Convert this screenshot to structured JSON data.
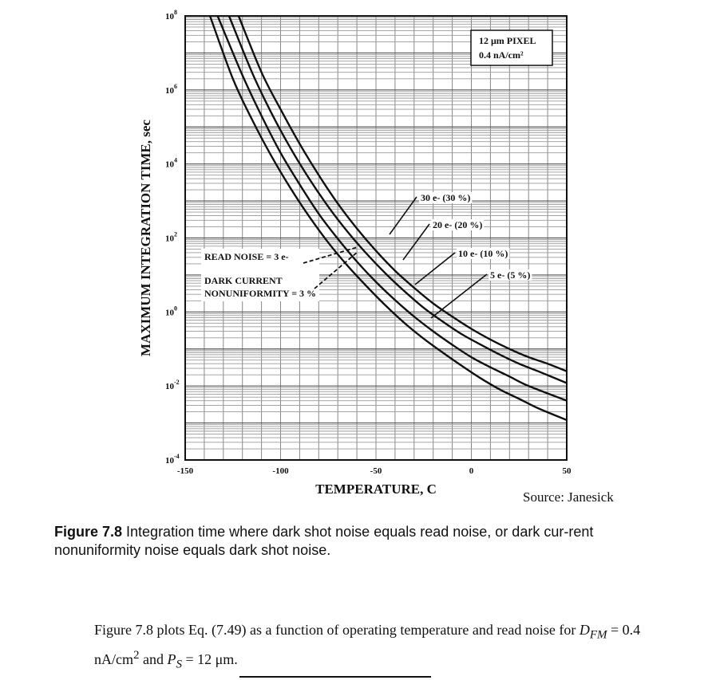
{
  "figure": {
    "label": "Figure 7.8",
    "caption": " Integration time where dark shot noise equals read noise, or dark cur-rent nonuniformity noise equals dark shot noise.",
    "source": "Source: Janesick"
  },
  "body_text": {
    "before": "Figure 7.8 plots Eq. (7.49) as a function of operating temperature and read noise for ",
    "dfm_symbol": "D",
    "dfm_sub": "FM",
    "eq1": " = 0.4 nA/cm",
    "sup2": "2",
    "middle": " and ",
    "ps_symbol": "P",
    "ps_sub": "S",
    "eq2": " = 12 μm."
  },
  "chart_data": {
    "type": "line",
    "xlabel": "TEMPERATURE, C",
    "ylabel": "MAXIMUM INTEGRATION TIME, sec",
    "xlim": [
      -150,
      50
    ],
    "ylim": [
      0.0001,
      100000000
    ],
    "y_scale": "log",
    "grid": true,
    "x_ticks": [
      "-150",
      "-100",
      "-50",
      "0",
      "50"
    ],
    "y_tick_mantissa": "10",
    "y_ticks": [
      {
        "value": 0.0001,
        "exp": "-4"
      },
      {
        "value": 0.01,
        "exp": "-2"
      },
      {
        "value": 1,
        "exp": "0"
      },
      {
        "value": 100,
        "exp": "2"
      },
      {
        "value": 10000,
        "exp": "4"
      },
      {
        "value": 1000000,
        "exp": "6"
      },
      {
        "value": 100000000,
        "exp": "8"
      }
    ],
    "legend_box": [
      "12 μm PIXEL",
      "0.4 nA/cm²"
    ],
    "annotations": {
      "read_noise": "READ NOISE = 3 e-",
      "dcnu_line1": "DARK CURRENT",
      "dcnu_line2": "NONUNIFORMITY = 3 %",
      "curve_labels": [
        "30 e- (30 %)",
        "20 e- (20 %)",
        "10 e- (10 %)",
        "5 e- (5 %)"
      ]
    },
    "series": [
      {
        "label_index": 0,
        "x": [
          -122,
          -110,
          -100,
          -90,
          -80,
          -70,
          -60,
          -50,
          -40,
          -30,
          -20,
          -10,
          0,
          10,
          20,
          30,
          40,
          50
        ],
        "y": [
          100000000,
          3000000,
          300000,
          35000,
          5000,
          850,
          180,
          45,
          13,
          4.5,
          1.7,
          0.75,
          0.35,
          0.18,
          0.1,
          0.06,
          0.04,
          0.025
        ]
      },
      {
        "label_index": 1,
        "x": [
          -127,
          -115,
          -105,
          -95,
          -85,
          -75,
          -65,
          -55,
          -45,
          -35,
          -25,
          -15,
          -5,
          5,
          15,
          25,
          35,
          50
        ],
        "y": [
          100000000,
          3000000,
          250000,
          28000,
          4000,
          700,
          150,
          38,
          11,
          3.6,
          1.3,
          0.55,
          0.25,
          0.13,
          0.07,
          0.04,
          0.025,
          0.012
        ]
      },
      {
        "label_index": 2,
        "x": [
          -133,
          -120,
          -110,
          -100,
          -90,
          -80,
          -70,
          -60,
          -50,
          -40,
          -30,
          -20,
          -10,
          0,
          10,
          20,
          30,
          50
        ],
        "y": [
          100000000,
          2500000,
          200000,
          20000,
          2800,
          450,
          95,
          23,
          6.5,
          2.1,
          0.75,
          0.3,
          0.13,
          0.06,
          0.032,
          0.018,
          0.01,
          0.004
        ]
      },
      {
        "label_index": 3,
        "x": [
          -137,
          -125,
          -115,
          -105,
          -95,
          -85,
          -75,
          -65,
          -55,
          -45,
          -35,
          -25,
          -15,
          -5,
          5,
          15,
          25,
          35,
          50
        ],
        "y": [
          100000000,
          2000000,
          160000,
          17000,
          2300,
          380,
          75,
          18,
          5,
          1.5,
          0.5,
          0.19,
          0.08,
          0.035,
          0.016,
          0.008,
          0.0045,
          0.0025,
          0.0012
        ]
      }
    ]
  }
}
